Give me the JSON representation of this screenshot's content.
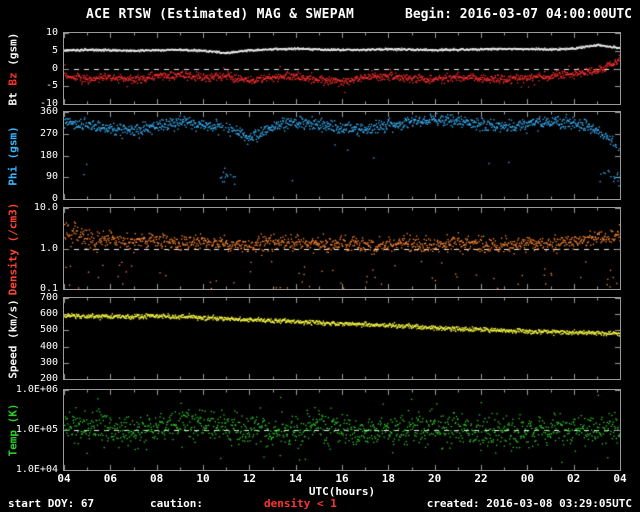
{
  "header": {
    "title": "ACE RTSW (Estimated) MAG & SWEPAM",
    "begin": "Begin: 2016-03-07 04:00:00UTC"
  },
  "xaxis": {
    "label": "UTC(hours)",
    "ticks": [
      "04",
      "06",
      "08",
      "10",
      "12",
      "14",
      "16",
      "18",
      "20",
      "22",
      "00",
      "02",
      "04"
    ]
  },
  "footer": {
    "start_doy": "start DOY:  67",
    "caution_label": "caution:",
    "caution_value": "density < 1",
    "caution_color": "#ff3333",
    "created": "created: 2016-03-08 03:29:05UTC"
  },
  "colors": {
    "background": "#000000",
    "frame": "#9a9a9a",
    "bt": "#f5f5f5",
    "bz": "#ff3030",
    "phi": "#3bb7ff",
    "density": "#ff8833",
    "speed": "#ffff44",
    "temp": "#2ecc2e",
    "dashed_line": "#e8e8e8"
  },
  "chart_data": {
    "type": "scatter",
    "title": "ACE RTSW (Estimated) MAG & SWEPAM",
    "xlabel": "UTC(hours)",
    "x_range_hours": [
      4,
      28
    ],
    "grid": false,
    "legend": false,
    "x_hours": [
      4,
      5,
      6,
      7,
      8,
      9,
      10,
      11,
      12,
      13,
      14,
      15,
      16,
      17,
      18,
      19,
      20,
      21,
      22,
      23,
      24,
      25,
      26,
      27,
      28
    ],
    "panels": [
      {
        "name": "bt_bz",
        "ylabel": "Bt Bz (gsm)",
        "label_parts": [
          {
            "text": "Bt ",
            "color": "#f5f5f5"
          },
          {
            "text": "Bz",
            "color": "#ff3030"
          },
          {
            "text": " (gsm)",
            "color": "#f5f5f5"
          }
        ],
        "scale": "linear",
        "ylim": [
          -10,
          10
        ],
        "yticks": [
          {
            "v": 10,
            "label": "10"
          },
          {
            "v": 5,
            "label": "5"
          },
          {
            "v": 0,
            "label": "0"
          },
          {
            "v": -5,
            "label": "-5"
          },
          {
            "v": -10,
            "label": "-10"
          }
        ],
        "dashed_line": 0,
        "series": [
          {
            "name": "Bt",
            "color": "#f5f5f5",
            "jitter": 0.25,
            "values": [
              5.3,
              5.4,
              5.3,
              5.2,
              5.3,
              5.4,
              5.2,
              4.5,
              5.3,
              5.6,
              5.7,
              5.5,
              5.4,
              5.5,
              5.6,
              5.5,
              5.4,
              5.5,
              5.6,
              5.7,
              5.6,
              5.5,
              5.8,
              6.8,
              5.9
            ]
          },
          {
            "name": "Bz",
            "color": "#ff3030",
            "jitter": 1.0,
            "values": [
              -2.0,
              -2.8,
              -2.2,
              -3.0,
              -2.0,
              -1.5,
              -2.6,
              -2.0,
              -3.2,
              -2.4,
              -2.0,
              -3.0,
              -3.4,
              -2.4,
              -2.0,
              -2.6,
              -3.0,
              -2.2,
              -2.6,
              -3.0,
              -2.4,
              -2.0,
              -1.2,
              -0.5,
              2.8
            ]
          }
        ]
      },
      {
        "name": "phi",
        "ylabel": "Phi (gsm)",
        "label_parts": [
          {
            "text": "Phi (gsm)",
            "color": "#3bb7ff"
          }
        ],
        "scale": "linear",
        "ylim": [
          0,
          360
        ],
        "yticks": [
          {
            "v": 360,
            "label": "360"
          },
          {
            "v": 270,
            "label": "270"
          },
          {
            "v": 180,
            "label": "180"
          },
          {
            "v": 90,
            "label": "90"
          },
          {
            "v": 0,
            "label": "0"
          }
        ],
        "dashed_line": null,
        "series": [
          {
            "name": "Phi",
            "color": "#3bb7ff",
            "jitter": 22,
            "values": [
              320,
              305,
              295,
              285,
              305,
              318,
              312,
              300,
              255,
              305,
              318,
              308,
              298,
              288,
              308,
              320,
              330,
              322,
              310,
              300,
              312,
              322,
              312,
              290,
              210
            ]
          }
        ]
      },
      {
        "name": "density",
        "ylabel": "Density (/cm3)",
        "label_parts": [
          {
            "text": "Density (/cm3)",
            "color": "#ff4433"
          }
        ],
        "scale": "log",
        "ylim": [
          0.1,
          10
        ],
        "yticks": [
          {
            "v": 10,
            "label": "10.0"
          },
          {
            "v": 1,
            "label": "1.0"
          },
          {
            "v": 0.1,
            "label": "0.1"
          }
        ],
        "dashed_line": 1,
        "series": [
          {
            "name": "Density",
            "color": "#ff8833",
            "jitter": 0.16,
            "values": [
              2.6,
              2.0,
              1.7,
              1.5,
              1.6,
              1.4,
              1.5,
              1.3,
              1.2,
              1.5,
              1.4,
              1.3,
              1.5,
              1.2,
              1.3,
              1.4,
              1.2,
              1.5,
              1.3,
              1.2,
              1.4,
              1.3,
              1.5,
              1.9,
              2.2
            ]
          }
        ]
      },
      {
        "name": "speed",
        "ylabel": "Speed (km/s)",
        "label_parts": [
          {
            "text": "Speed (km/s)",
            "color": "#f5f5f5"
          }
        ],
        "scale": "linear",
        "ylim": [
          200,
          700
        ],
        "yticks": [
          {
            "v": 700,
            "label": "700"
          },
          {
            "v": 600,
            "label": "600"
          },
          {
            "v": 500,
            "label": "500"
          },
          {
            "v": 400,
            "label": "400"
          },
          {
            "v": 300,
            "label": "300"
          },
          {
            "v": 200,
            "label": "200"
          }
        ],
        "dashed_line": null,
        "series": [
          {
            "name": "Speed",
            "color": "#ffff44",
            "jitter": 12,
            "values": [
              595,
              592,
              588,
              590,
              592,
              588,
              582,
              576,
              570,
              565,
              558,
              550,
              545,
              540,
              534,
              528,
              520,
              514,
              508,
              503,
              498,
              494,
              490,
              487,
              485
            ]
          }
        ]
      },
      {
        "name": "temp",
        "ylabel": "Temp (K)",
        "label_parts": [
          {
            "text": "Temp (K)",
            "color": "#2ecc2e"
          }
        ],
        "scale": "log",
        "ylim": [
          10000,
          1000000
        ],
        "yticks": [
          {
            "v": 1000000,
            "label": "1.0E+06"
          },
          {
            "v": 100000,
            "label": "1.0E+05"
          },
          {
            "v": 10000,
            "label": "1.0E+04"
          }
        ],
        "dashed_line": 100000,
        "series": [
          {
            "name": "Temp",
            "color": "#2ecc2e",
            "jitter": 0.35,
            "values": [
              130000,
              120000,
              110000,
              100000,
              120000,
              135000,
              150000,
              120000,
              100000,
              90000,
              110000,
              120000,
              100000,
              90000,
              100000,
              110000,
              120000,
              100000,
              90000,
              85000,
              92000,
              100000,
              110000,
              105000,
              95000
            ]
          }
        ]
      }
    ]
  }
}
